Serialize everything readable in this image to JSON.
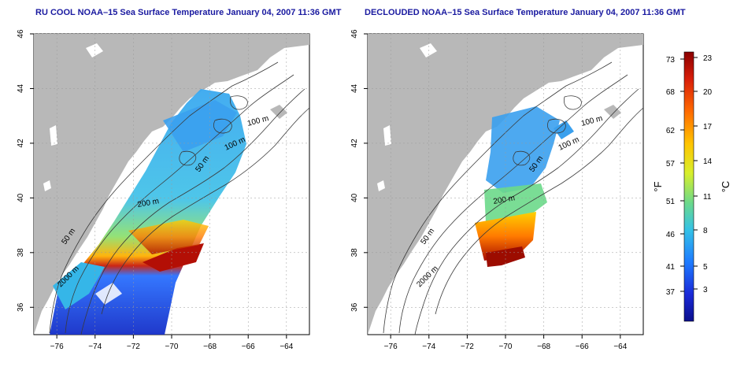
{
  "panels": [
    {
      "title": "RU COOL NOAA–15 Sea Surface Temperature January 04, 2007 11:36 GMT",
      "contour_labels": [
        "100 m",
        "100 m",
        "50 m",
        "200 m",
        "50 m",
        "2000 m"
      ]
    },
    {
      "title": "DECLOUDED NOAA–15 Sea Surface Temperature January 04, 2007 11:36 GMT",
      "contour_labels": [
        "100 m",
        "100 m",
        "50 m",
        "200 m",
        "50 m",
        "2000 m"
      ]
    }
  ],
  "axes": {
    "x_ticks": [
      "−76",
      "−74",
      "−72",
      "−70",
      "−68",
      "−66",
      "−64"
    ],
    "y_ticks": [
      "36",
      "38",
      "40",
      "42",
      "44",
      "46"
    ],
    "x_range": [
      -77.2,
      -62.8
    ],
    "y_range": [
      35,
      46
    ],
    "grid": true
  },
  "colorbar": {
    "fahrenheit_label": "°F",
    "celsius_label": "°C",
    "fahrenheit_ticks": [
      "73",
      "68",
      "62",
      "57",
      "51",
      "46",
      "41",
      "37"
    ],
    "celsius_ticks": [
      "23",
      "20",
      "17",
      "14",
      "11",
      "8",
      "5",
      "3"
    ],
    "colors": [
      "#8b0000",
      "#d81e0a",
      "#ff6a00",
      "#ffc400",
      "#d8ef2c",
      "#6cd98a",
      "#35c2e6",
      "#1e7bff",
      "#1a2ad8",
      "#0b0f8c"
    ]
  }
}
